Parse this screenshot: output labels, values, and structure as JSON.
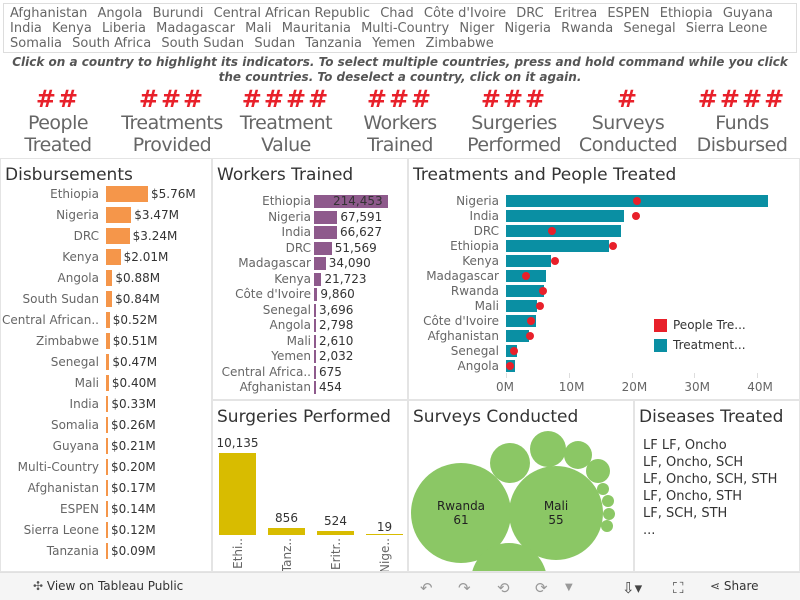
{
  "filter": {
    "countries": [
      "Afghanistan",
      "Angola",
      "Burundi",
      "Central African Republic",
      "Chad",
      "Côte d'Ivoire",
      "DRC",
      "Eritrea",
      "ESPEN",
      "Ethiopia",
      "Guyana",
      "India",
      "Kenya",
      "Liberia",
      "Madagascar",
      "Mali",
      "Mauritania",
      "Multi-Country",
      "Niger",
      "Nigeria",
      "Rwanda",
      "Senegal",
      "Sierra Leone",
      "Somalia",
      "South Africa",
      "South Sudan",
      "Sudan",
      "Tanzania",
      "Yemen",
      "Zimbabwe"
    ],
    "instructions": "Click on a country to highlight its indicators. To select multiple countries, press and hold command while you click the countries. To deselect a country, click on it again."
  },
  "kpis": [
    {
      "value": "##",
      "label": "People Treated"
    },
    {
      "value": "###",
      "label": "Treatments Provided"
    },
    {
      "value": "####",
      "label": "Treatment Value"
    },
    {
      "value": "###",
      "label": "Workers Trained"
    },
    {
      "value": "###",
      "label": "Surgeries Performed"
    },
    {
      "value": "#",
      "label": "Surveys Conducted"
    },
    {
      "value": "####",
      "label": "Funds Disbursed"
    }
  ],
  "colors": {
    "kpi": "#e8202a",
    "disbursements": "#f5964a",
    "workers": "#8e5a8c",
    "treatments": "#0a8fa3",
    "people": "#e8202a",
    "surgeries": "#d8bc00",
    "surveys": "#8bc765"
  },
  "disbursements": {
    "title": "Disbursements",
    "rows": [
      {
        "country": "Ethiopia",
        "value": 5.76,
        "label": "$5.76M"
      },
      {
        "country": "Nigeria",
        "value": 3.47,
        "label": "$3.47M"
      },
      {
        "country": "DRC",
        "value": 3.24,
        "label": "$3.24M"
      },
      {
        "country": "Kenya",
        "value": 2.01,
        "label": "$2.01M"
      },
      {
        "country": "Angola",
        "value": 0.88,
        "label": "$0.88M"
      },
      {
        "country": "South Sudan",
        "value": 0.84,
        "label": "$0.84M"
      },
      {
        "country": "Central African..",
        "value": 0.52,
        "label": "$0.52M"
      },
      {
        "country": "Zimbabwe",
        "value": 0.51,
        "label": "$0.51M"
      },
      {
        "country": "Senegal",
        "value": 0.47,
        "label": "$0.47M"
      },
      {
        "country": "Mali",
        "value": 0.4,
        "label": "$0.40M"
      },
      {
        "country": "India",
        "value": 0.33,
        "label": "$0.33M"
      },
      {
        "country": "Somalia",
        "value": 0.26,
        "label": "$0.26M"
      },
      {
        "country": "Guyana",
        "value": 0.21,
        "label": "$0.21M"
      },
      {
        "country": "Multi-Country",
        "value": 0.2,
        "label": "$0.20M"
      },
      {
        "country": "Afghanistan",
        "value": 0.17,
        "label": "$0.17M"
      },
      {
        "country": "ESPEN",
        "value": 0.14,
        "label": "$0.14M"
      },
      {
        "country": "Sierra Leone",
        "value": 0.12,
        "label": "$0.12M"
      },
      {
        "country": "Tanzania",
        "value": 0.09,
        "label": "$0.09M"
      }
    ]
  },
  "workers": {
    "title": "Workers Trained",
    "rows": [
      {
        "country": "Ethiopia",
        "value": 214453,
        "label": "214,453"
      },
      {
        "country": "Nigeria",
        "value": 67591,
        "label": "67,591"
      },
      {
        "country": "India",
        "value": 66627,
        "label": "66,627"
      },
      {
        "country": "DRC",
        "value": 51569,
        "label": "51,569"
      },
      {
        "country": "Madagascar",
        "value": 34090,
        "label": "34,090"
      },
      {
        "country": "Kenya",
        "value": 21723,
        "label": "21,723"
      },
      {
        "country": "Côte d'Ivoire",
        "value": 9860,
        "label": "9,860"
      },
      {
        "country": "Senegal",
        "value": 3696,
        "label": "3,696"
      },
      {
        "country": "Angola",
        "value": 2798,
        "label": "2,798"
      },
      {
        "country": "Mali",
        "value": 2610,
        "label": "2,610"
      },
      {
        "country": "Yemen",
        "value": 2032,
        "label": "2,032"
      },
      {
        "country": "Central Africa..",
        "value": 675,
        "label": "675"
      },
      {
        "country": "Afghanistan",
        "value": 454,
        "label": "454"
      }
    ]
  },
  "chart_data": {
    "type": "bar",
    "title": "Treatments and People Treated",
    "categories": [
      "Nigeria",
      "India",
      "DRC",
      "Ethiopia",
      "Kenya",
      "Madagascar",
      "Rwanda",
      "Mali",
      "Côte d'Ivoire",
      "Afghanistan",
      "Senegal",
      "Angola"
    ],
    "series": [
      {
        "name": "Treatment...",
        "values": [
          41.7,
          18.8,
          18.3,
          16.4,
          7.2,
          6.3,
          6.1,
          4.9,
          4.7,
          3.6,
          1.7,
          1.5
        ]
      },
      {
        "name": "People Tre...",
        "values": [
          20.8,
          20.7,
          7.3,
          17.0,
          7.8,
          3.2,
          5.9,
          5.4,
          4.0,
          3.9,
          1.3,
          0.6
        ]
      }
    ],
    "xticks": [
      "0M",
      "10M",
      "20M",
      "30M",
      "40M"
    ],
    "xlim": [
      0,
      44
    ],
    "legend": "right"
  },
  "surgeries": {
    "title": "Surgeries Performed",
    "rows": [
      {
        "country": "Ethi..",
        "value": 10135,
        "label": "10,135"
      },
      {
        "country": "Tanz..",
        "value": 856,
        "label": "856"
      },
      {
        "country": "Eritr..",
        "value": 524,
        "label": "524"
      },
      {
        "country": "Nige..",
        "value": 19,
        "label": "19"
      }
    ]
  },
  "surveys": {
    "title": "Surveys Conducted",
    "bubbles": [
      {
        "country": "Rwanda",
        "value": "61"
      },
      {
        "country": "Mali",
        "value": "55"
      }
    ]
  },
  "diseases": {
    "title": "Diseases Treated",
    "items": [
      "LF  LF, Oncho",
      "LF, Oncho, SCH",
      "LF, Oncho, SCH, STH",
      "LF, Oncho, STH",
      "LF, SCH, STH",
      "..."
    ]
  },
  "toolbar": {
    "view_label": "View on Tableau Public",
    "share_label": "Share"
  }
}
